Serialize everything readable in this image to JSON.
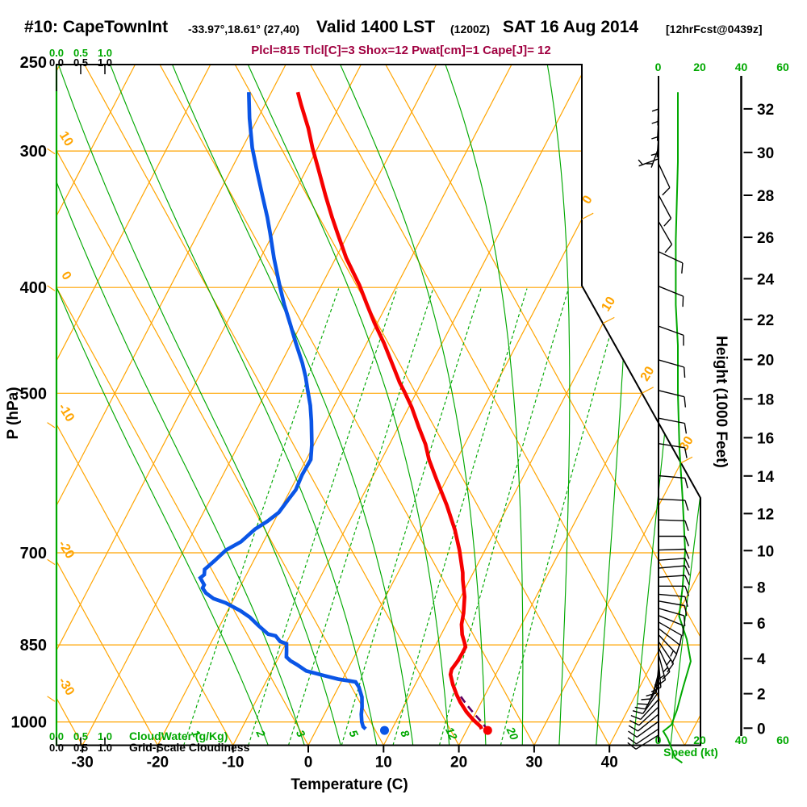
{
  "title": {
    "station": "#10: CapeTownInt",
    "coords": "-33.97°,18.61° (27,40)",
    "valid": "Valid 1400 LST",
    "zulu": "(1200Z)",
    "date": "SAT 16 Aug 2014",
    "fcst": "[12hrFcst@0439z]"
  },
  "subtitle": "Plcl=815 Tlcl[C]=3 Shox=12 Pwat[cm]=1 Cape[J]= 12",
  "colors": {
    "grid_orange": "#FFA400",
    "green": "#00A800",
    "temp_red": "#F60000",
    "dew_blue": "#0A55E6",
    "parcel_purple": "#5C0060",
    "subtitle_maroon": "#A00040",
    "black": "#000000"
  },
  "chart_data": {
    "type": "skewt_log_p_sounding",
    "pressure_axis": {
      "label": "P (hPa)",
      "ticks": [
        250,
        300,
        400,
        500,
        700,
        850,
        1000
      ],
      "top_hpa": 250,
      "bottom_hpa": 1051
    },
    "temperature_axis": {
      "label": "Temperature (C)",
      "ticks": [
        -30,
        -20,
        -10,
        0,
        10,
        20,
        30,
        40
      ]
    },
    "height_axis": {
      "label": "Height (1000 Feet)",
      "ticks_kft": [
        0,
        2,
        4,
        6,
        8,
        10,
        12,
        14,
        16,
        18,
        20,
        22,
        24,
        26,
        28,
        30,
        32
      ]
    },
    "speed_axis": {
      "label": "Speed (kt)",
      "ticks": [
        0,
        20,
        40,
        60
      ]
    },
    "cloud_axes": {
      "water_label": "CloudWater (g/Kg)",
      "cloudiness_label": "Grid-Scale Cloudiness",
      "tick_labels": [
        "0.0",
        "0.5",
        "1.0"
      ]
    },
    "isotherms_c": {
      "values": [
        -80,
        -70,
        -60,
        -50,
        -40,
        -30,
        -20,
        -10,
        0,
        10,
        20,
        30,
        40,
        50
      ],
      "edge_labels": [
        0,
        10,
        20,
        30
      ]
    },
    "dry_adiabats_c": {
      "values": [
        -30,
        -20,
        -10,
        0,
        10,
        20,
        30,
        40,
        50,
        60
      ],
      "edge_labels": [
        10,
        0,
        -10,
        -20,
        -30
      ]
    },
    "moist_adiabats_thetaw_k": [
      265,
      270,
      275,
      280,
      285,
      290,
      295,
      300,
      305,
      310,
      315,
      320,
      325
    ],
    "mixing_ratio_g_kg": [
      1,
      2,
      3,
      5,
      8,
      12,
      20
    ],
    "temperature_profile_p_t": [
      [
        265,
        -46.5
      ],
      [
        272,
        -45.2
      ],
      [
        286,
        -42.6
      ],
      [
        298,
        -40.7
      ],
      [
        312,
        -38.4
      ],
      [
        330,
        -35.6
      ],
      [
        345,
        -33.3
      ],
      [
        358,
        -31.3
      ],
      [
        376,
        -28.6
      ],
      [
        398,
        -25.0
      ],
      [
        415,
        -22.6
      ],
      [
        431,
        -20.4
      ],
      [
        450,
        -17.7
      ],
      [
        469,
        -15.3
      ],
      [
        489,
        -12.9
      ],
      [
        498,
        -11.7
      ],
      [
        515,
        -9.6
      ],
      [
        537,
        -7.3
      ],
      [
        557,
        -5.2
      ],
      [
        575,
        -3.7
      ],
      [
        600,
        -1.3
      ],
      [
        633,
        1.8
      ],
      [
        667,
        4.6
      ],
      [
        696,
        6.6
      ],
      [
        730,
        8.6
      ],
      [
        741,
        9.1
      ],
      [
        768,
        10.5
      ],
      [
        795,
        11.5
      ],
      [
        814,
        12.0
      ],
      [
        832,
        12.8
      ],
      [
        845,
        13.6
      ],
      [
        854,
        14.1
      ],
      [
        867,
        14.1
      ],
      [
        879,
        14.05
      ],
      [
        895,
        13.8
      ],
      [
        905,
        14.0
      ],
      [
        924,
        15.0
      ],
      [
        944,
        16.2
      ],
      [
        959,
        17.2
      ],
      [
        979,
        18.7
      ],
      [
        995,
        20.1
      ],
      [
        1005,
        21.1
      ],
      [
        1010,
        21.6
      ],
      [
        1015,
        21.9
      ]
    ],
    "dewpoint_profile_p_t": [
      [
        265,
        -53.0
      ],
      [
        280,
        -51.1
      ],
      [
        298,
        -48.7
      ],
      [
        312,
        -46.6
      ],
      [
        330,
        -44.0
      ],
      [
        345,
        -41.9
      ],
      [
        357,
        -40.4
      ],
      [
        376,
        -38.2
      ],
      [
        398,
        -35.6
      ],
      [
        415,
        -33.6
      ],
      [
        432,
        -31.5
      ],
      [
        450,
        -29.4
      ],
      [
        469,
        -27.2
      ],
      [
        483,
        -25.8
      ],
      [
        498,
        -24.5
      ],
      [
        513,
        -23.2
      ],
      [
        530,
        -22.0
      ],
      [
        557,
        -20.3
      ],
      [
        575,
        -19.4
      ],
      [
        594,
        -19.5
      ],
      [
        613,
        -19.3
      ],
      [
        625,
        -19.6
      ],
      [
        643,
        -20.0
      ],
      [
        655,
        -20.9
      ],
      [
        666,
        -22.0
      ],
      [
        684,
        -23.0
      ],
      [
        696,
        -24.4
      ],
      [
        712,
        -25.2
      ],
      [
        725,
        -25.9
      ],
      [
        733,
        -25.6
      ],
      [
        738,
        -25.9
      ],
      [
        749,
        -24.9
      ],
      [
        754,
        -24.9
      ],
      [
        762,
        -24.1
      ],
      [
        771,
        -22.7
      ],
      [
        778,
        -20.8
      ],
      [
        791,
        -18.3
      ],
      [
        802,
        -16.6
      ],
      [
        816,
        -14.9
      ],
      [
        831,
        -13.0
      ],
      [
        834,
        -11.9
      ],
      [
        844,
        -10.9
      ],
      [
        848,
        -9.9
      ],
      [
        861,
        -9.4
      ],
      [
        872,
        -9.0
      ],
      [
        879,
        -8.2
      ],
      [
        886,
        -7.1
      ],
      [
        898,
        -5.4
      ],
      [
        907,
        -2.7
      ],
      [
        914,
        -0.5
      ],
      [
        917,
        1.0
      ],
      [
        919,
        1.9
      ],
      [
        929,
        2.7
      ],
      [
        949,
        3.8
      ],
      [
        969,
        4.5
      ],
      [
        984,
        4.9
      ],
      [
        1000,
        5.5
      ],
      [
        1010,
        6.0
      ],
      [
        1015,
        6.5
      ]
    ],
    "parcel_path_p_t": [
      [
        948,
        16.9
      ],
      [
        965,
        18.3
      ],
      [
        980,
        19.6
      ],
      [
        1000,
        21.4
      ],
      [
        1016,
        22.7
      ]
    ],
    "surface_temp_point_p_t": [
      1018,
      22.8
    ],
    "surface_dewpoint_point_p_t": [
      1018,
      9.1
    ],
    "cloud_water_profile_g_kg": 0.0,
    "speed_profile_p_kt": [
      [
        265,
        9.5
      ],
      [
        307,
        9.5
      ],
      [
        362,
        8.5
      ],
      [
        415,
        8.5
      ],
      [
        452,
        9.5
      ],
      [
        500,
        9.5
      ],
      [
        563,
        10.3
      ],
      [
        625,
        11.8
      ],
      [
        697,
        13.0
      ],
      [
        752,
        11.8
      ],
      [
        800,
        10.1
      ],
      [
        840,
        13.8
      ],
      [
        880,
        15.7
      ],
      [
        930,
        12.0
      ],
      [
        975,
        9.1
      ],
      [
        1006,
        6.4
      ],
      [
        1020,
        2.5
      ],
      [
        1035,
        4.5
      ],
      [
        1079,
        8.3
      ],
      [
        1090,
        11.6
      ]
    ],
    "wind_barbs_p_dir_kt": [
      [
        265,
        181,
        5
      ],
      [
        272,
        182,
        5
      ],
      [
        281,
        183,
        5
      ],
      [
        291,
        184,
        5
      ],
      [
        298,
        200,
        5
      ],
      [
        305,
        250,
        5
      ],
      [
        308,
        155,
        10
      ],
      [
        329,
        152,
        10
      ],
      [
        348,
        150,
        10
      ],
      [
        371,
        115,
        10
      ],
      [
        399,
        112,
        10
      ],
      [
        434,
        110,
        10
      ],
      [
        466,
        106,
        10
      ],
      [
        497,
        104,
        10
      ],
      [
        527,
        101,
        10
      ],
      [
        556,
        99,
        10
      ],
      [
        595,
        95,
        10
      ],
      [
        625,
        93,
        10
      ],
      [
        653,
        92,
        12
      ],
      [
        676,
        90,
        13
      ],
      [
        696,
        88,
        13
      ],
      [
        711,
        86,
        13
      ],
      [
        723,
        85,
        13
      ],
      [
        737,
        86,
        12
      ],
      [
        751,
        90,
        12
      ],
      [
        764,
        95,
        12
      ],
      [
        775,
        100,
        13
      ],
      [
        787,
        106,
        13
      ],
      [
        799,
        112,
        13
      ],
      [
        810,
        120,
        14
      ],
      [
        821,
        128,
        14
      ],
      [
        832,
        137,
        15
      ],
      [
        844,
        146,
        15
      ],
      [
        855,
        155,
        15
      ],
      [
        867,
        165,
        15
      ],
      [
        879,
        175,
        15
      ],
      [
        890,
        185,
        14
      ],
      [
        902,
        195,
        14
      ],
      [
        915,
        203,
        13
      ],
      [
        927,
        210,
        12
      ],
      [
        939,
        216,
        12
      ],
      [
        954,
        222,
        11
      ],
      [
        969,
        227,
        11
      ],
      [
        984,
        231,
        10
      ],
      [
        999,
        234,
        10
      ],
      [
        1015,
        236,
        10
      ],
      [
        1028,
        238,
        10
      ]
    ]
  }
}
